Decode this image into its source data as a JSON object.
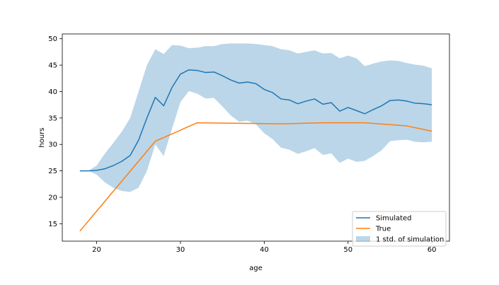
{
  "chart_data": {
    "type": "line",
    "xlabel": "age",
    "ylabel": "hours",
    "xlim": [
      15.9,
      62.1
    ],
    "ylim": [
      11.7,
      50.9
    ],
    "xticks": [
      20,
      30,
      40,
      50,
      60
    ],
    "yticks": [
      15,
      20,
      25,
      30,
      35,
      40,
      45,
      50
    ],
    "grid": false,
    "legend_position": "lower right",
    "colors": {
      "simulated": "#1f77b4",
      "true": "#ff7f0e",
      "band": "#1f77b4"
    },
    "band": {
      "name": "1 std. of simulation",
      "x": [
        18,
        19,
        20,
        21,
        22,
        23,
        24,
        25,
        26,
        27,
        28,
        29,
        30,
        31,
        32,
        33,
        34,
        35,
        36,
        37,
        38,
        39,
        40,
        41,
        42,
        43,
        44,
        45,
        46,
        47,
        48,
        49,
        50,
        51,
        52,
        53,
        54,
        55,
        56,
        57,
        58,
        59,
        60
      ],
      "lower": [
        25.0,
        25.0,
        24.3,
        22.8,
        21.8,
        21.2,
        21.0,
        21.8,
        25.0,
        30.0,
        27.8,
        33.0,
        38.0,
        40.1,
        39.6,
        38.7,
        38.8,
        37.2,
        35.5,
        34.3,
        34.5,
        33.8,
        32.1,
        31.0,
        29.4,
        29.0,
        28.2,
        28.7,
        29.3,
        28.0,
        28.3,
        26.5,
        27.3,
        26.7,
        26.9,
        27.8,
        28.9,
        30.6,
        30.8,
        30.9,
        30.5,
        30.4,
        30.5
      ],
      "upper": [
        25.0,
        25.0,
        26.0,
        28.3,
        30.3,
        32.4,
        35.0,
        40.0,
        45.0,
        48.0,
        47.1,
        48.8,
        48.7,
        48.2,
        48.3,
        48.6,
        48.6,
        49.0,
        49.1,
        49.1,
        49.1,
        49.0,
        48.8,
        48.6,
        48.0,
        47.8,
        47.2,
        47.5,
        47.8,
        47.2,
        47.3,
        46.3,
        46.8,
        46.3,
        44.8,
        45.3,
        45.7,
        45.9,
        45.8,
        45.4,
        45.1,
        44.9,
        44.4
      ]
    },
    "series": [
      {
        "name": "Simulated",
        "x": [
          18,
          19,
          20,
          21,
          22,
          23,
          24,
          25,
          26,
          27,
          28,
          29,
          30,
          31,
          32,
          33,
          34,
          35,
          36,
          37,
          38,
          39,
          40,
          41,
          42,
          43,
          44,
          45,
          46,
          47,
          48,
          49,
          50,
          51,
          52,
          53,
          54,
          55,
          56,
          57,
          58,
          59,
          60
        ],
        "y": [
          25.0,
          25.0,
          25.1,
          25.4,
          26.0,
          26.8,
          27.9,
          30.8,
          35.0,
          38.9,
          37.3,
          40.8,
          43.3,
          44.1,
          44.0,
          43.6,
          43.7,
          43.0,
          42.2,
          41.6,
          41.8,
          41.5,
          40.4,
          39.8,
          38.6,
          38.4,
          37.7,
          38.2,
          38.6,
          37.6,
          37.9,
          36.3,
          37.0,
          36.4,
          35.8,
          36.6,
          37.3,
          38.3,
          38.4,
          38.2,
          37.8,
          37.7,
          37.5
        ]
      },
      {
        "name": "True",
        "x": [
          18,
          27,
          32,
          42,
          47,
          52,
          57,
          60
        ],
        "y": [
          13.6,
          30.6,
          34.1,
          33.9,
          34.1,
          34.1,
          33.5,
          32.5
        ]
      }
    ]
  }
}
